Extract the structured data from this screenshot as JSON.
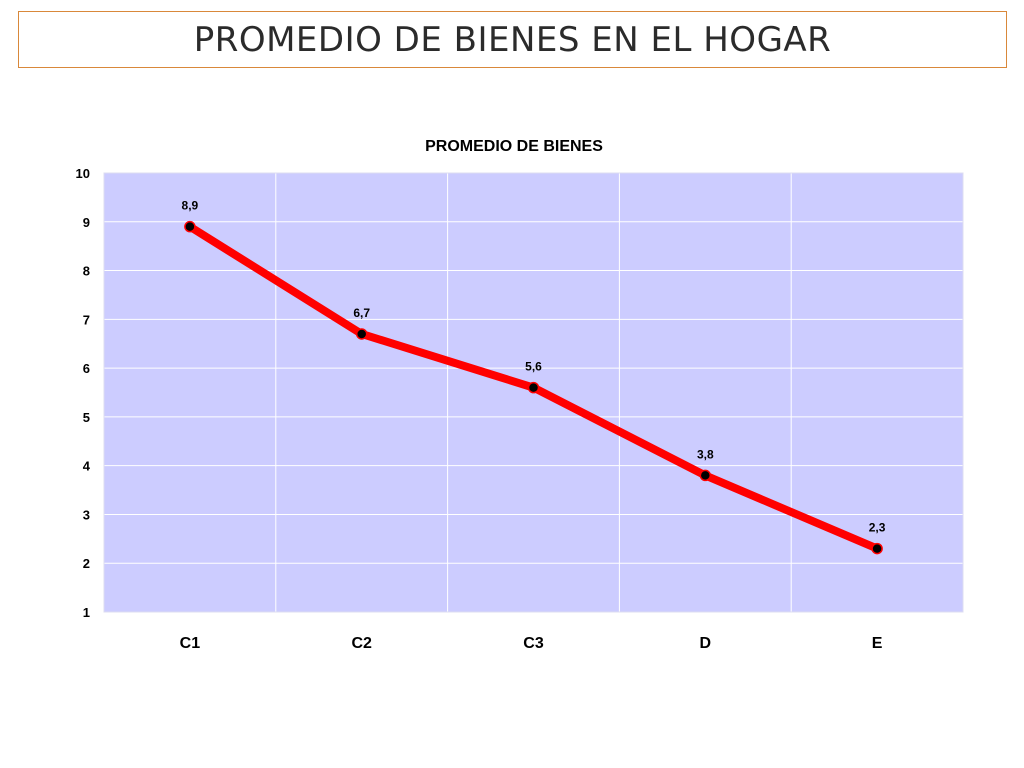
{
  "slide": {
    "title": "PROMEDIO DE BIENES EN EL HOGAR"
  },
  "chart_data": {
    "type": "line",
    "title": "PROMEDIO DE BIENES",
    "categories": [
      "C1",
      "C2",
      "C3",
      "D",
      "E"
    ],
    "series": [
      {
        "values": [
          8.9,
          6.7,
          5.6,
          3.8,
          2.3
        ],
        "labels": [
          "8,9",
          "6,7",
          "5,6",
          "3,8",
          "2,3"
        ],
        "color": "#ff0000",
        "marker_color": "#000000"
      }
    ],
    "y_ticks": [
      "1",
      "2",
      "3",
      "4",
      "5",
      "6",
      "7",
      "8",
      "9",
      "10"
    ],
    "ylim": [
      1,
      10
    ],
    "grid": true,
    "plot_background": "#ccccff",
    "grid_color": "#ffffff",
    "xlabel": "",
    "ylabel": ""
  }
}
